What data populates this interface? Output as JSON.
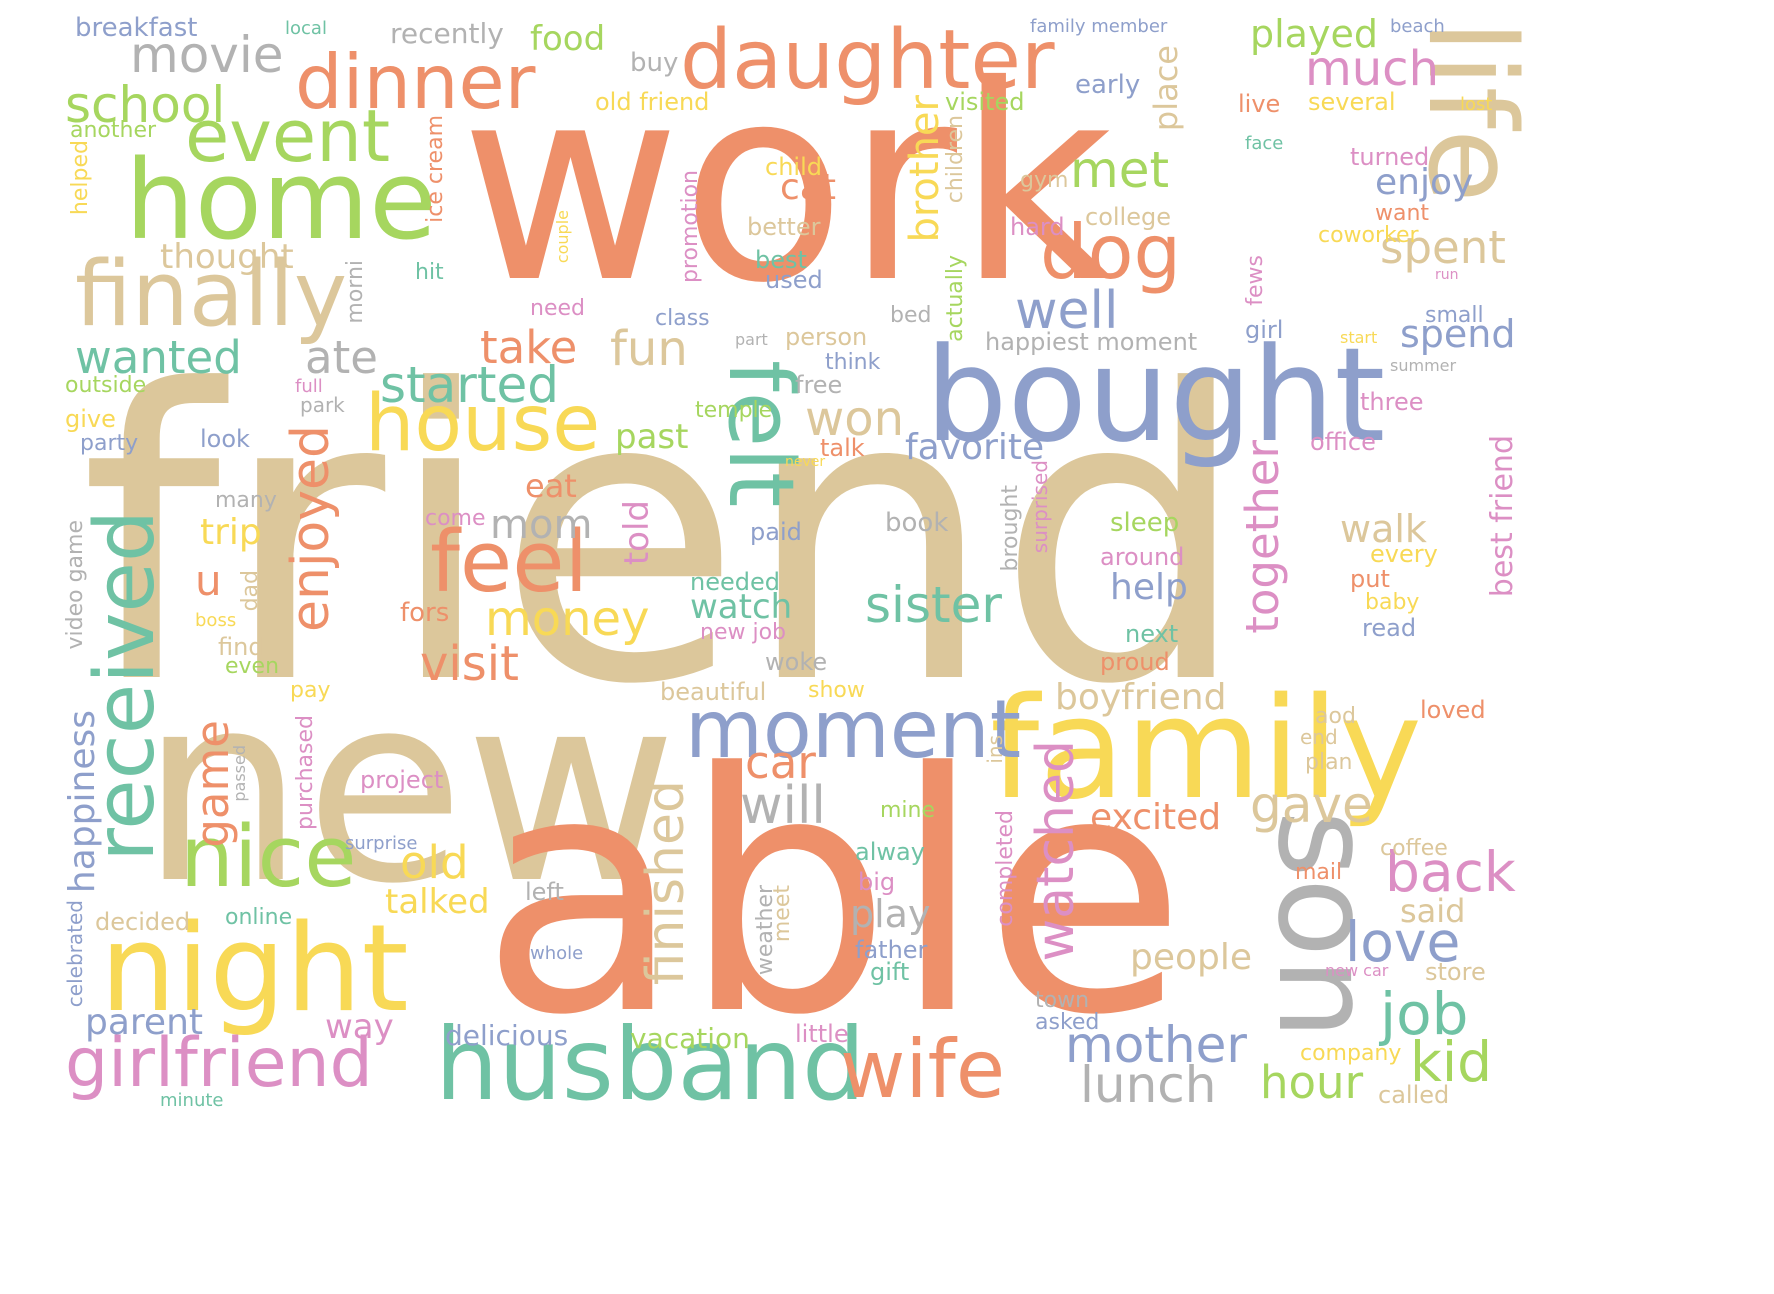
{
  "palette": {
    "orange": "#ee906a",
    "tan": "#dcc79b",
    "blue": "#8e9fcb",
    "green": "#a6d65f",
    "teal": "#6fc2a4",
    "yellow": "#f8d956",
    "pink": "#dc8fc4",
    "gray": "#b2b2b2"
  },
  "words": [
    {
      "text": "work",
      "color": "orange"
    },
    {
      "text": "friend",
      "color": "tan"
    },
    {
      "text": "new",
      "color": "tan"
    },
    {
      "text": "able",
      "color": "orange"
    },
    {
      "text": "bought",
      "color": "blue"
    },
    {
      "text": "family",
      "color": "yellow"
    },
    {
      "text": "home",
      "color": "green"
    },
    {
      "text": "daughter",
      "color": "orange"
    },
    {
      "text": "dinner",
      "color": "orange"
    },
    {
      "text": "life",
      "color": "tan"
    },
    {
      "text": "finally",
      "color": "tan"
    },
    {
      "text": "night",
      "color": "yellow"
    },
    {
      "text": "son",
      "color": "gray"
    },
    {
      "text": "husband",
      "color": "teal"
    },
    {
      "text": "wife",
      "color": "orange"
    },
    {
      "text": "felt",
      "color": "teal"
    },
    {
      "text": "received",
      "color": "teal"
    },
    {
      "text": "moment",
      "color": "blue"
    },
    {
      "text": "feel",
      "color": "orange"
    },
    {
      "text": "house",
      "color": "yellow"
    },
    {
      "text": "event",
      "color": "green"
    },
    {
      "text": "girlfriend",
      "color": "pink"
    },
    {
      "text": "nice",
      "color": "green"
    },
    {
      "text": "dog",
      "color": "orange"
    },
    {
      "text": "school",
      "color": "green"
    },
    {
      "text": "movie",
      "color": "gray"
    },
    {
      "text": "enjoyed",
      "color": "orange"
    },
    {
      "text": "watched",
      "color": "pink"
    },
    {
      "text": "started",
      "color": "teal"
    },
    {
      "text": "sister",
      "color": "teal"
    },
    {
      "text": "well",
      "color": "blue"
    },
    {
      "text": "met",
      "color": "green"
    },
    {
      "text": "much",
      "color": "pink"
    },
    {
      "text": "wanted",
      "color": "teal"
    },
    {
      "text": "ate",
      "color": "gray"
    },
    {
      "text": "take",
      "color": "orange"
    },
    {
      "text": "fun",
      "color": "tan"
    },
    {
      "text": "won",
      "color": "tan"
    },
    {
      "text": "money",
      "color": "yellow"
    },
    {
      "text": "visit",
      "color": "orange"
    },
    {
      "text": "finished",
      "color": "tan"
    },
    {
      "text": "together",
      "color": "pink"
    },
    {
      "text": "job",
      "color": "teal"
    },
    {
      "text": "back",
      "color": "pink"
    },
    {
      "text": "love",
      "color": "blue"
    },
    {
      "text": "mother",
      "color": "blue"
    },
    {
      "text": "lunch",
      "color": "gray"
    },
    {
      "text": "hour",
      "color": "green"
    },
    {
      "text": "kid",
      "color": "green"
    },
    {
      "text": "will",
      "color": "gray"
    },
    {
      "text": "car",
      "color": "orange"
    },
    {
      "text": "game",
      "color": "orange"
    },
    {
      "text": "old",
      "color": "yellow"
    },
    {
      "text": "gave",
      "color": "tan"
    },
    {
      "text": "spent",
      "color": "tan"
    },
    {
      "text": "brother",
      "color": "yellow"
    },
    {
      "text": "played",
      "color": "green"
    },
    {
      "text": "happiness",
      "color": "blue"
    },
    {
      "text": "parent",
      "color": "blue"
    },
    {
      "text": "boyfriend",
      "color": "tan"
    },
    {
      "text": "favorite",
      "color": "blue"
    },
    {
      "text": "mom",
      "color": "gray"
    },
    {
      "text": "cat",
      "color": "orange"
    },
    {
      "text": "enjoy",
      "color": "blue"
    },
    {
      "text": "spend",
      "color": "blue"
    },
    {
      "text": "walk",
      "color": "tan"
    },
    {
      "text": "help",
      "color": "blue"
    },
    {
      "text": "excited",
      "color": "orange"
    },
    {
      "text": "people",
      "color": "tan"
    },
    {
      "text": "play",
      "color": "gray"
    },
    {
      "text": "food",
      "color": "green"
    },
    {
      "text": "place",
      "color": "tan"
    },
    {
      "text": "thought",
      "color": "tan"
    },
    {
      "text": "past",
      "color": "green"
    },
    {
      "text": "talked",
      "color": "yellow"
    },
    {
      "text": "watch",
      "color": "teal"
    },
    {
      "text": "told",
      "color": "pink"
    },
    {
      "text": "trip",
      "color": "yellow"
    },
    {
      "text": "u",
      "color": "orange"
    },
    {
      "text": "eat",
      "color": "orange"
    },
    {
      "text": "way",
      "color": "pink"
    },
    {
      "text": "delicious",
      "color": "blue"
    },
    {
      "text": "vacation",
      "color": "green"
    },
    {
      "text": "said",
      "color": "tan"
    },
    {
      "text": "best friend",
      "color": "pink"
    },
    {
      "text": "breakfast",
      "color": "blue"
    },
    {
      "text": "recently",
      "color": "gray"
    },
    {
      "text": "local",
      "color": "teal"
    },
    {
      "text": "family member",
      "color": "blue"
    },
    {
      "text": "beach",
      "color": "blue"
    },
    {
      "text": "buy",
      "color": "gray"
    },
    {
      "text": "early",
      "color": "blue"
    },
    {
      "text": "old friend",
      "color": "yellow"
    },
    {
      "text": "visited",
      "color": "green"
    },
    {
      "text": "live",
      "color": "orange"
    },
    {
      "text": "several",
      "color": "yellow"
    },
    {
      "text": "lost",
      "color": "yellow"
    },
    {
      "text": "another",
      "color": "green"
    },
    {
      "text": "helped",
      "color": "yellow"
    },
    {
      "text": "ice cream",
      "color": "orange"
    },
    {
      "text": "child",
      "color": "yellow"
    },
    {
      "text": "face",
      "color": "teal"
    },
    {
      "text": "turned",
      "color": "pink"
    },
    {
      "text": "gym",
      "color": "tan"
    },
    {
      "text": "college",
      "color": "tan"
    },
    {
      "text": "want",
      "color": "orange"
    },
    {
      "text": "coworker",
      "color": "yellow"
    },
    {
      "text": "better",
      "color": "tan"
    },
    {
      "text": "hard",
      "color": "pink"
    },
    {
      "text": "children",
      "color": "tan"
    },
    {
      "text": "best",
      "color": "teal"
    },
    {
      "text": "used",
      "color": "blue"
    },
    {
      "text": "promotion",
      "color": "pink"
    },
    {
      "text": "couple",
      "color": "yellow"
    },
    {
      "text": "hit",
      "color": "teal"
    },
    {
      "text": "morni",
      "color": "gray"
    },
    {
      "text": "need",
      "color": "pink"
    },
    {
      "text": "class",
      "color": "blue"
    },
    {
      "text": "part",
      "color": "gray"
    },
    {
      "text": "person",
      "color": "tan"
    },
    {
      "text": "bed",
      "color": "gray"
    },
    {
      "text": "actually",
      "color": "green"
    },
    {
      "text": "happiest moment",
      "color": "gray"
    },
    {
      "text": "fews",
      "color": "pink"
    },
    {
      "text": "girl",
      "color": "blue"
    },
    {
      "text": "start",
      "color": "yellow"
    },
    {
      "text": "small",
      "color": "blue"
    },
    {
      "text": "run",
      "color": "pink"
    },
    {
      "text": "summer",
      "color": "gray"
    },
    {
      "text": "outside",
      "color": "green"
    },
    {
      "text": "full",
      "color": "pink"
    },
    {
      "text": "park",
      "color": "gray"
    },
    {
      "text": "free",
      "color": "gray"
    },
    {
      "text": "think",
      "color": "blue"
    },
    {
      "text": "three",
      "color": "pink"
    },
    {
      "text": "give",
      "color": "yellow"
    },
    {
      "text": "look",
      "color": "blue"
    },
    {
      "text": "party",
      "color": "blue"
    },
    {
      "text": "temple",
      "color": "green"
    },
    {
      "text": "talk",
      "color": "orange"
    },
    {
      "text": "never",
      "color": "yellow"
    },
    {
      "text": "office",
      "color": "pink"
    },
    {
      "text": "many",
      "color": "gray"
    },
    {
      "text": "come",
      "color": "pink"
    },
    {
      "text": "paid",
      "color": "blue"
    },
    {
      "text": "book",
      "color": "gray"
    },
    {
      "text": "sleep",
      "color": "green"
    },
    {
      "text": "brought",
      "color": "gray"
    },
    {
      "text": "surprised",
      "color": "pink"
    },
    {
      "text": "around",
      "color": "pink"
    },
    {
      "text": "every",
      "color": "yellow"
    },
    {
      "text": "video game",
      "color": "gray"
    },
    {
      "text": "needed",
      "color": "teal"
    },
    {
      "text": "put",
      "color": "orange"
    },
    {
      "text": "baby",
      "color": "yellow"
    },
    {
      "text": "dad",
      "color": "tan"
    },
    {
      "text": "boss",
      "color": "yellow"
    },
    {
      "text": "fors",
      "color": "orange"
    },
    {
      "text": "new job",
      "color": "pink"
    },
    {
      "text": "next",
      "color": "teal"
    },
    {
      "text": "read",
      "color": "blue"
    },
    {
      "text": "find",
      "color": "tan"
    },
    {
      "text": "even",
      "color": "green"
    },
    {
      "text": "woke",
      "color": "gray"
    },
    {
      "text": "proud",
      "color": "orange"
    },
    {
      "text": "pay",
      "color": "yellow"
    },
    {
      "text": "beautiful",
      "color": "tan"
    },
    {
      "text": "show",
      "color": "yellow"
    },
    {
      "text": "loved",
      "color": "orange"
    },
    {
      "text": "aod",
      "color": "tan"
    },
    {
      "text": "end",
      "color": "tan"
    },
    {
      "text": "ins",
      "color": "tan"
    },
    {
      "text": "plan",
      "color": "tan"
    },
    {
      "text": "passed",
      "color": "gray"
    },
    {
      "text": "purchased",
      "color": "pink"
    },
    {
      "text": "project",
      "color": "pink"
    },
    {
      "text": "mine",
      "color": "green"
    },
    {
      "text": "completed",
      "color": "pink"
    },
    {
      "text": "surprise",
      "color": "blue"
    },
    {
      "text": "coffee",
      "color": "tan"
    },
    {
      "text": "alway",
      "color": "teal"
    },
    {
      "text": "mail",
      "color": "orange"
    },
    {
      "text": "big",
      "color": "pink"
    },
    {
      "text": "left",
      "color": "gray"
    },
    {
      "text": "decided",
      "color": "tan"
    },
    {
      "text": "online",
      "color": "teal"
    },
    {
      "text": "weather",
      "color": "gray"
    },
    {
      "text": "meet",
      "color": "tan"
    },
    {
      "text": "celebrated",
      "color": "blue"
    },
    {
      "text": "whole",
      "color": "blue"
    },
    {
      "text": "father",
      "color": "blue"
    },
    {
      "text": "gift",
      "color": "teal"
    },
    {
      "text": "new car",
      "color": "pink"
    },
    {
      "text": "store",
      "color": "tan"
    },
    {
      "text": "town",
      "color": "gray"
    },
    {
      "text": "asked",
      "color": "blue"
    },
    {
      "text": "little",
      "color": "pink"
    },
    {
      "text": "company",
      "color": "yellow"
    },
    {
      "text": "minute",
      "color": "teal"
    },
    {
      "text": "called",
      "color": "tan"
    }
  ]
}
